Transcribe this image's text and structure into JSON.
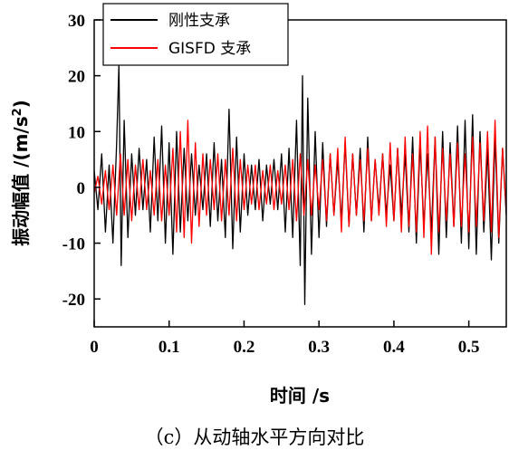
{
  "chart_data": {
    "type": "line",
    "caption": "（c）从动轴水平方向对比",
    "xlabel": "时间 /s",
    "ylabel_main": "振动幅值 /(m/s",
    "ylabel_sup": "2",
    "ylabel_close": ")",
    "xlim": [
      0,
      0.55
    ],
    "ylim": [
      -25,
      30
    ],
    "xticks": [
      0,
      0.1,
      0.2,
      0.3,
      0.4,
      0.5
    ],
    "xtick_labels": [
      "0",
      "0.1",
      "0.2",
      "0.3",
      "0.4",
      "0.5"
    ],
    "yticks": [
      -20,
      -10,
      0,
      10,
      20,
      30
    ],
    "ytick_labels": [
      "-20",
      "-10",
      "0",
      "10",
      "20",
      "30"
    ],
    "legend_position": "top-left",
    "series": [
      {
        "name": "刚性支承",
        "color": "#000000",
        "points": [
          [
            0,
            3
          ],
          [
            0.005,
            -4
          ],
          [
            0.01,
            6
          ],
          [
            0.015,
            -8
          ],
          [
            0.02,
            4
          ],
          [
            0.025,
            -10
          ],
          [
            0.03,
            8
          ],
          [
            0.033,
            22
          ],
          [
            0.036,
            -14
          ],
          [
            0.04,
            12
          ],
          [
            0.045,
            -9
          ],
          [
            0.05,
            6
          ],
          [
            0.055,
            -5
          ],
          [
            0.06,
            7
          ],
          [
            0.065,
            -4
          ],
          [
            0.07,
            5
          ],
          [
            0.075,
            -8
          ],
          [
            0.08,
            9
          ],
          [
            0.085,
            -6
          ],
          [
            0.09,
            11
          ],
          [
            0.095,
            -10
          ],
          [
            0.1,
            8
          ],
          [
            0.105,
            -12
          ],
          [
            0.11,
            10
          ],
          [
            0.115,
            -8
          ],
          [
            0.12,
            7
          ],
          [
            0.125,
            -6
          ],
          [
            0.13,
            6
          ],
          [
            0.135,
            -5
          ],
          [
            0.14,
            4
          ],
          [
            0.145,
            -4
          ],
          [
            0.15,
            6
          ],
          [
            0.155,
            -7
          ],
          [
            0.16,
            8
          ],
          [
            0.165,
            -6
          ],
          [
            0.17,
            5
          ],
          [
            0.175,
            -9
          ],
          [
            0.18,
            14
          ],
          [
            0.185,
            -11
          ],
          [
            0.19,
            9
          ],
          [
            0.195,
            -8
          ],
          [
            0.2,
            6
          ],
          [
            0.205,
            -5
          ],
          [
            0.21,
            4
          ],
          [
            0.215,
            -4
          ],
          [
            0.22,
            5
          ],
          [
            0.225,
            -6
          ],
          [
            0.23,
            4
          ],
          [
            0.235,
            -3
          ],
          [
            0.24,
            5
          ],
          [
            0.245,
            -4
          ],
          [
            0.25,
            6
          ],
          [
            0.255,
            -8
          ],
          [
            0.26,
            7
          ],
          [
            0.265,
            -9
          ],
          [
            0.27,
            12
          ],
          [
            0.275,
            -14
          ],
          [
            0.278,
            20
          ],
          [
            0.281,
            -21
          ],
          [
            0.285,
            16
          ],
          [
            0.29,
            -12
          ],
          [
            0.295,
            10
          ],
          [
            0.3,
            -9
          ],
          [
            0.305,
            8
          ],
          [
            0.31,
            -7
          ],
          [
            0.315,
            6
          ],
          [
            0.32,
            -5
          ],
          [
            0.325,
            5
          ],
          [
            0.33,
            -6
          ],
          [
            0.335,
            8
          ],
          [
            0.34,
            -7
          ],
          [
            0.345,
            6
          ],
          [
            0.35,
            -5
          ],
          [
            0.355,
            7
          ],
          [
            0.36,
            -8
          ],
          [
            0.365,
            9
          ],
          [
            0.37,
            -6
          ],
          [
            0.375,
            5
          ],
          [
            0.38,
            -4
          ],
          [
            0.385,
            6
          ],
          [
            0.39,
            -5
          ],
          [
            0.395,
            4
          ],
          [
            0.4,
            -6
          ],
          [
            0.405,
            7
          ],
          [
            0.41,
            -5
          ],
          [
            0.415,
            6
          ],
          [
            0.42,
            -8
          ],
          [
            0.425,
            9
          ],
          [
            0.43,
            -10
          ],
          [
            0.435,
            8
          ],
          [
            0.44,
            -7
          ],
          [
            0.445,
            6
          ],
          [
            0.45,
            -8
          ],
          [
            0.455,
            9
          ],
          [
            0.46,
            -12
          ],
          [
            0.465,
            10
          ],
          [
            0.47,
            -9
          ],
          [
            0.475,
            8
          ],
          [
            0.48,
            -7
          ],
          [
            0.485,
            11
          ],
          [
            0.49,
            -10
          ],
          [
            0.495,
            12
          ],
          [
            0.5,
            -11
          ],
          [
            0.505,
            13
          ],
          [
            0.51,
            -12
          ],
          [
            0.515,
            10
          ],
          [
            0.52,
            -8
          ],
          [
            0.525,
            7
          ],
          [
            0.53,
            -13
          ],
          [
            0.535,
            9
          ],
          [
            0.54,
            -10
          ],
          [
            0.545,
            7
          ],
          [
            0.55,
            -5
          ]
        ]
      },
      {
        "name": "GISFD 支承",
        "color": "#ff0000",
        "points": [
          [
            0,
            -1
          ],
          [
            0.005,
            2
          ],
          [
            0.01,
            -3
          ],
          [
            0.015,
            3
          ],
          [
            0.02,
            -4
          ],
          [
            0.025,
            4
          ],
          [
            0.03,
            -5
          ],
          [
            0.035,
            6
          ],
          [
            0.04,
            -5
          ],
          [
            0.045,
            5
          ],
          [
            0.05,
            -6
          ],
          [
            0.055,
            4
          ],
          [
            0.06,
            -4
          ],
          [
            0.065,
            5
          ],
          [
            0.07,
            -4
          ],
          [
            0.075,
            3
          ],
          [
            0.08,
            -5
          ],
          [
            0.085,
            5
          ],
          [
            0.09,
            -6
          ],
          [
            0.095,
            4
          ],
          [
            0.1,
            -5
          ],
          [
            0.105,
            7
          ],
          [
            0.11,
            -8
          ],
          [
            0.115,
            10
          ],
          [
            0.12,
            -9
          ],
          [
            0.125,
            12
          ],
          [
            0.13,
            -10
          ],
          [
            0.135,
            8
          ],
          [
            0.14,
            -7
          ],
          [
            0.145,
            6
          ],
          [
            0.15,
            -5
          ],
          [
            0.155,
            5
          ],
          [
            0.16,
            -4
          ],
          [
            0.165,
            6
          ],
          [
            0.17,
            -6
          ],
          [
            0.175,
            5
          ],
          [
            0.18,
            -5
          ],
          [
            0.185,
            7
          ],
          [
            0.19,
            -6
          ],
          [
            0.195,
            5
          ],
          [
            0.2,
            -4
          ],
          [
            0.205,
            4
          ],
          [
            0.21,
            -3
          ],
          [
            0.215,
            4
          ],
          [
            0.22,
            -4
          ],
          [
            0.225,
            3
          ],
          [
            0.23,
            -3
          ],
          [
            0.235,
            4
          ],
          [
            0.24,
            -4
          ],
          [
            0.245,
            3
          ],
          [
            0.25,
            -3
          ],
          [
            0.255,
            4
          ],
          [
            0.26,
            -4
          ],
          [
            0.265,
            5
          ],
          [
            0.27,
            -6
          ],
          [
            0.275,
            6
          ],
          [
            0.28,
            -5
          ],
          [
            0.285,
            5
          ],
          [
            0.29,
            -5
          ],
          [
            0.295,
            4
          ],
          [
            0.3,
            -4
          ],
          [
            0.305,
            5
          ],
          [
            0.31,
            -6
          ],
          [
            0.315,
            6
          ],
          [
            0.32,
            -5
          ],
          [
            0.325,
            7
          ],
          [
            0.33,
            -8
          ],
          [
            0.335,
            9
          ],
          [
            0.34,
            -7
          ],
          [
            0.345,
            6
          ],
          [
            0.35,
            -5
          ],
          [
            0.355,
            5
          ],
          [
            0.36,
            -6
          ],
          [
            0.365,
            7
          ],
          [
            0.37,
            -6
          ],
          [
            0.375,
            5
          ],
          [
            0.38,
            -5
          ],
          [
            0.385,
            6
          ],
          [
            0.39,
            -7
          ],
          [
            0.395,
            8
          ],
          [
            0.4,
            -6
          ],
          [
            0.405,
            7
          ],
          [
            0.41,
            -8
          ],
          [
            0.415,
            9
          ],
          [
            0.42,
            -7
          ],
          [
            0.425,
            6
          ],
          [
            0.43,
            -8
          ],
          [
            0.435,
            10
          ],
          [
            0.44,
            -9
          ],
          [
            0.445,
            11
          ],
          [
            0.45,
            -12
          ],
          [
            0.455,
            9
          ],
          [
            0.46,
            -8
          ],
          [
            0.465,
            7
          ],
          [
            0.47,
            -6
          ],
          [
            0.475,
            6
          ],
          [
            0.48,
            -7
          ],
          [
            0.485,
            8
          ],
          [
            0.49,
            -7
          ],
          [
            0.495,
            6
          ],
          [
            0.5,
            -8
          ],
          [
            0.505,
            9
          ],
          [
            0.51,
            -7
          ],
          [
            0.515,
            8
          ],
          [
            0.52,
            -6
          ],
          [
            0.525,
            10
          ],
          [
            0.53,
            -8
          ],
          [
            0.535,
            12
          ],
          [
            0.54,
            -9
          ],
          [
            0.545,
            7
          ],
          [
            0.55,
            -4
          ]
        ]
      }
    ]
  }
}
